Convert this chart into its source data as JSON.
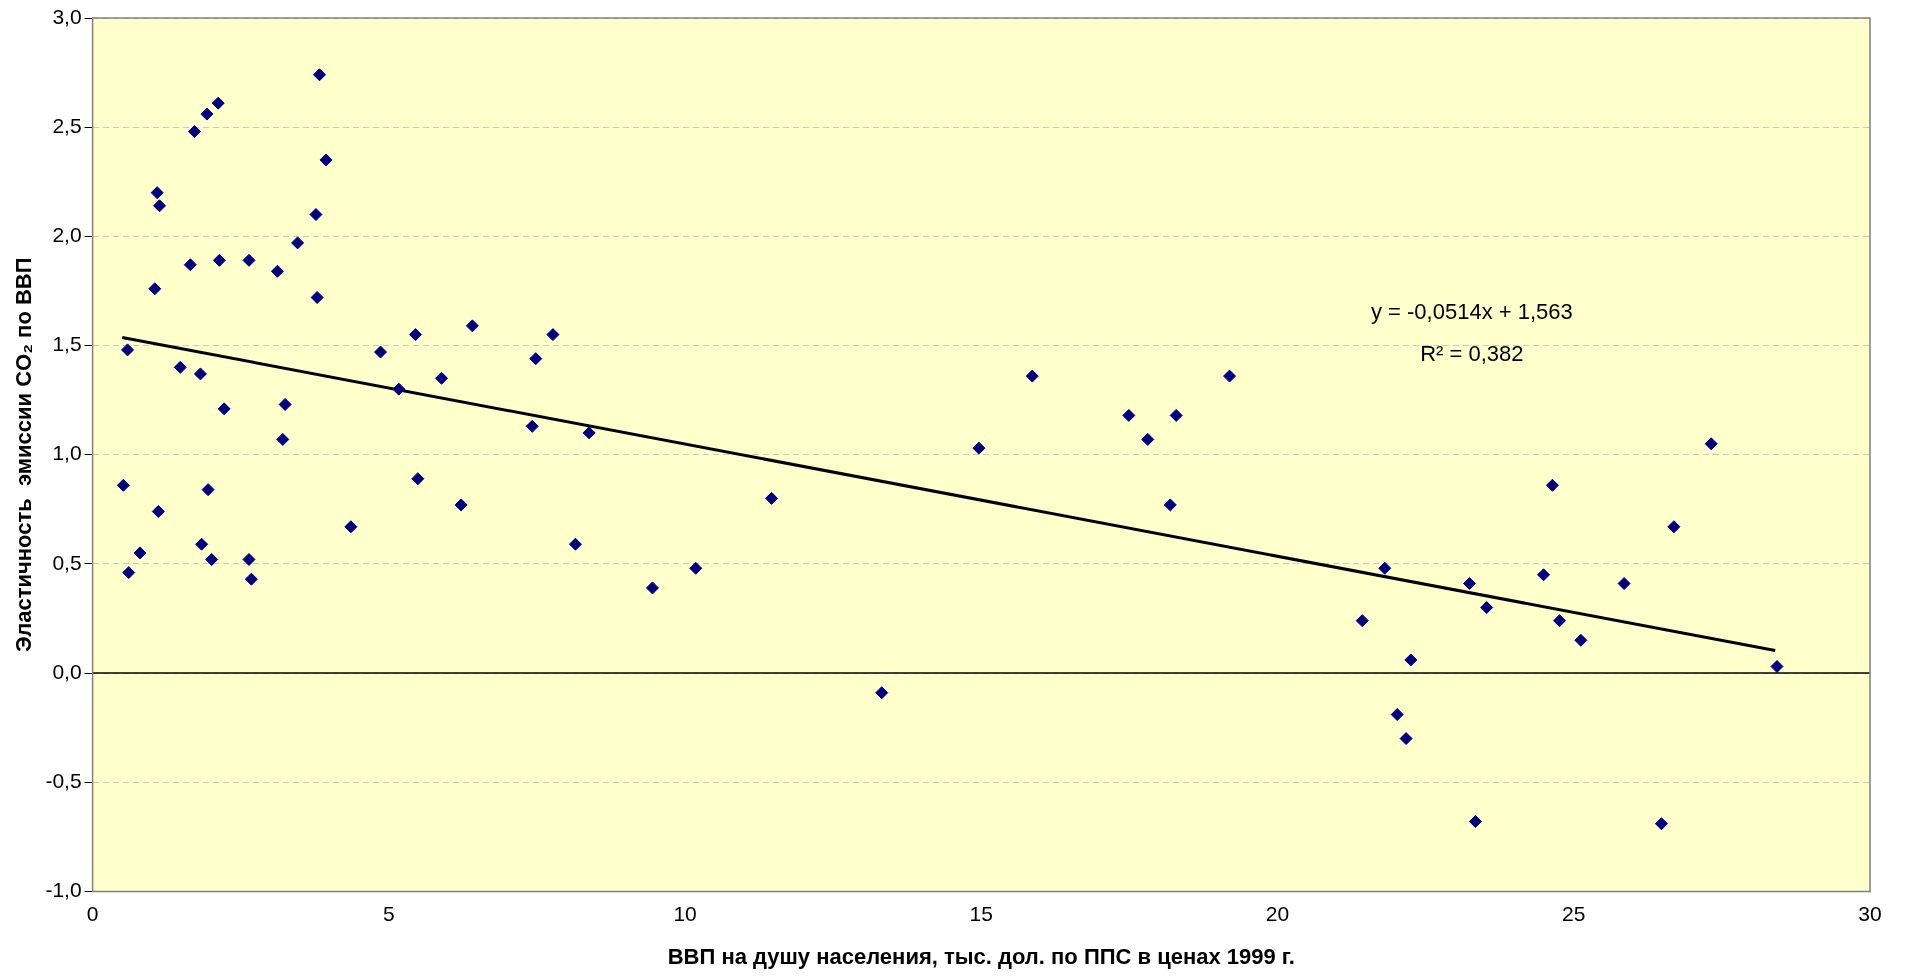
{
  "chart_data": {
    "type": "scatter",
    "xlabel": "ВВП на душу населения, тыс. дол. по ППС в ценах 1999 г.",
    "ylabel": "Эластичность  эмиссии CO₂ по ВВП",
    "series": [
      {
        "type": "scatter",
        "color": "#000080",
        "marker": "diamond",
        "x": [
          0.52,
          0.59,
          0.61,
          0.8,
          1.05,
          1.09,
          1.13,
          1.11,
          1.48,
          1.65,
          1.72,
          1.82,
          1.84,
          1.93,
          1.95,
          2.01,
          2.12,
          2.14,
          2.22,
          2.64,
          2.64,
          2.68,
          3.12,
          3.21,
          3.25,
          3.46,
          3.77,
          3.79,
          3.83,
          3.94,
          4.36,
          4.86,
          5.17,
          5.45,
          5.49,
          5.89,
          6.22,
          6.41,
          7.42,
          7.48,
          7.77,
          8.15,
          8.38,
          9.45,
          10.18,
          11.46,
          13.32,
          14.96,
          15.86,
          17.49,
          17.81,
          18.19,
          18.29,
          19.19,
          21.43,
          21.81,
          22.02,
          22.17,
          22.25,
          23.24,
          23.34,
          23.53,
          24.49,
          24.64,
          24.76,
          25.12,
          25.85,
          26.48,
          26.69,
          27.32,
          28.43
        ],
        "values": [
          0.86,
          1.48,
          0.46,
          0.55,
          1.76,
          2.2,
          2.14,
          0.74,
          1.4,
          1.87,
          2.48,
          1.37,
          0.59,
          2.56,
          0.84,
          0.52,
          2.61,
          1.89,
          1.21,
          1.89,
          0.52,
          0.43,
          1.84,
          1.07,
          1.23,
          1.97,
          2.1,
          1.72,
          2.74,
          2.35,
          0.67,
          1.47,
          1.3,
          1.55,
          0.89,
          1.35,
          0.77,
          1.59,
          1.13,
          1.44,
          1.55,
          0.59,
          1.1,
          0.39,
          0.48,
          0.8,
          -0.09,
          1.03,
          1.36,
          1.18,
          1.07,
          0.77,
          1.18,
          1.36,
          0.24,
          0.48,
          -0.19,
          -0.3,
          0.06,
          0.41,
          -0.68,
          0.3,
          0.45,
          0.86,
          0.24,
          0.15,
          0.41,
          -0.69,
          0.67,
          1.05,
          0.03
        ]
      },
      {
        "type": "line",
        "color": "#000000",
        "marker": "none",
        "line_style": "solid",
        "x": [
          0.5,
          28.4
        ],
        "values": [
          1.537,
          0.103
        ]
      }
    ],
    "xlim": [
      0,
      30
    ],
    "xticks": [
      0,
      5,
      10,
      15,
      20,
      25,
      30
    ],
    "ylim": [
      -1,
      3
    ],
    "yticks": [
      {
        "value": -1,
        "label": "-1,0"
      },
      {
        "value": -0.5,
        "label": "-0,5"
      },
      {
        "value": 0,
        "label": "0,0"
      },
      {
        "value": 0.5,
        "label": "0,5"
      },
      {
        "value": 1,
        "label": "1,0"
      },
      {
        "value": 1.5,
        "label": "1,5"
      },
      {
        "value": 2,
        "label": "2,0"
      },
      {
        "value": 2.5,
        "label": "2,5"
      },
      {
        "value": 3,
        "label": "3,0"
      }
    ],
    "grid": "y",
    "legend": false,
    "ref_lines": [
      {
        "axis": "y",
        "value": 0,
        "color": "#000000",
        "line_style": "solid"
      }
    ],
    "annotations": [
      "y = -0,0514x + 1,563",
      "R² = 0,382"
    ]
  }
}
